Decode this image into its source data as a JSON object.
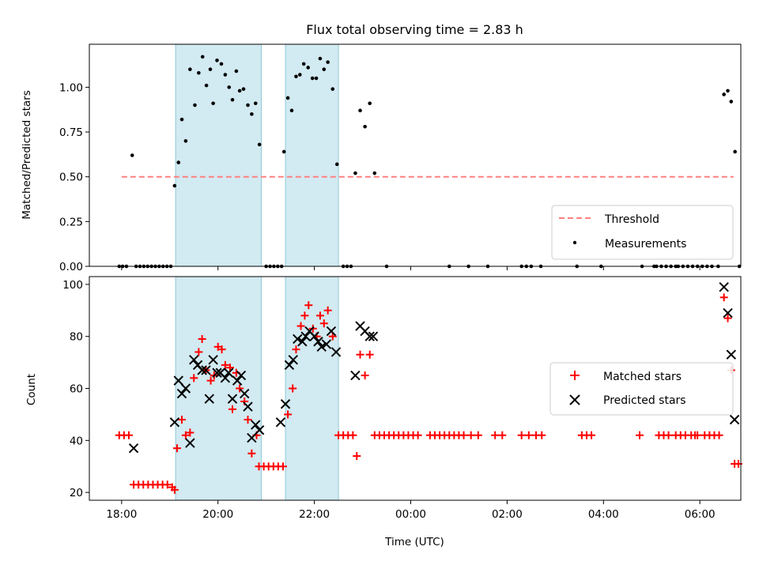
{
  "chart_data": [
    {
      "type": "scatter",
      "title": "Flux total observing time = 2.83 h",
      "xlabel": "",
      "ylabel": "Matched/Predicted stars",
      "xlim_hours": [
        17.33,
        30.85
      ],
      "ylim": [
        0,
        1.24
      ],
      "yticks": [
        "0.00",
        "0.25",
        "0.50",
        "0.75",
        "1.00"
      ],
      "xticks": [
        18,
        20,
        22,
        24,
        26,
        28,
        30
      ],
      "shaded_intervals_hours": [
        [
          19.12,
          20.9
        ],
        [
          21.4,
          22.5
        ]
      ],
      "shade_color": "#add8e6",
      "legend_position": "lower-right",
      "series": [
        {
          "name": "Threshold",
          "kind": "dashed-line",
          "color": "#ff8080",
          "x": [
            18.0,
            30.7
          ],
          "y": [
            0.5,
            0.5
          ]
        },
        {
          "name": "Measurements",
          "kind": "dots",
          "color": "#000000",
          "points": [
            [
              17.95,
              0
            ],
            [
              18.02,
              0
            ],
            [
              18.1,
              0
            ],
            [
              18.22,
              0.62
            ],
            [
              18.3,
              0
            ],
            [
              18.38,
              0
            ],
            [
              18.46,
              0
            ],
            [
              18.54,
              0
            ],
            [
              18.62,
              0
            ],
            [
              18.7,
              0
            ],
            [
              18.78,
              0
            ],
            [
              18.86,
              0
            ],
            [
              18.94,
              0
            ],
            [
              19.02,
              0
            ],
            [
              19.1,
              0.45
            ],
            [
              19.18,
              0.58
            ],
            [
              19.25,
              0.82
            ],
            [
              19.33,
              0.7
            ],
            [
              19.42,
              1.1
            ],
            [
              19.52,
              0.9
            ],
            [
              19.6,
              1.08
            ],
            [
              19.68,
              1.17
            ],
            [
              19.76,
              1.01
            ],
            [
              19.84,
              1.1
            ],
            [
              19.9,
              0.91
            ],
            [
              19.98,
              1.15
            ],
            [
              20.07,
              1.13
            ],
            [
              20.15,
              1.07
            ],
            [
              20.23,
              1.0
            ],
            [
              20.3,
              0.93
            ],
            [
              20.38,
              1.09
            ],
            [
              20.45,
              0.98
            ],
            [
              20.53,
              0.99
            ],
            [
              20.62,
              0.9
            ],
            [
              20.7,
              0.85
            ],
            [
              20.78,
              0.91
            ],
            [
              20.86,
              0.68
            ],
            [
              21.0,
              0
            ],
            [
              21.08,
              0
            ],
            [
              21.16,
              0
            ],
            [
              21.24,
              0
            ],
            [
              21.32,
              0
            ],
            [
              21.37,
              0.64
            ],
            [
              21.45,
              0.94
            ],
            [
              21.53,
              0.87
            ],
            [
              21.62,
              1.06
            ],
            [
              21.7,
              1.07
            ],
            [
              21.78,
              1.13
            ],
            [
              21.87,
              1.11
            ],
            [
              21.96,
              1.05
            ],
            [
              22.04,
              1.05
            ],
            [
              22.12,
              1.16
            ],
            [
              22.2,
              1.1
            ],
            [
              22.28,
              1.14
            ],
            [
              22.38,
              0.99
            ],
            [
              22.47,
              0.57
            ],
            [
              22.6,
              0
            ],
            [
              22.68,
              0
            ],
            [
              22.76,
              0
            ],
            [
              22.85,
              0.52
            ],
            [
              22.95,
              0.87
            ],
            [
              23.05,
              0.78
            ],
            [
              23.15,
              0.91
            ],
            [
              23.25,
              0.52
            ],
            [
              23.5,
              0
            ],
            [
              24.8,
              0
            ],
            [
              25.2,
              0
            ],
            [
              25.6,
              0
            ],
            [
              26.3,
              0
            ],
            [
              26.4,
              0
            ],
            [
              26.5,
              0
            ],
            [
              26.7,
              0
            ],
            [
              27.45,
              0
            ],
            [
              27.95,
              0
            ],
            [
              28.8,
              0
            ],
            [
              29.05,
              0
            ],
            [
              29.1,
              0
            ],
            [
              29.2,
              0
            ],
            [
              29.3,
              0
            ],
            [
              29.4,
              0
            ],
            [
              29.5,
              0
            ],
            [
              29.55,
              0
            ],
            [
              29.65,
              0
            ],
            [
              29.75,
              0
            ],
            [
              29.85,
              0
            ],
            [
              29.95,
              0
            ],
            [
              30.05,
              0
            ],
            [
              30.15,
              0
            ],
            [
              30.25,
              0
            ],
            [
              30.38,
              0
            ],
            [
              30.5,
              0.96
            ],
            [
              30.58,
              0.98
            ],
            [
              30.65,
              0.92
            ],
            [
              30.73,
              0.64
            ],
            [
              30.82,
              0
            ]
          ]
        }
      ]
    },
    {
      "type": "scatter",
      "title": "",
      "xlabel": "Time (UTC)",
      "ylabel": "Count",
      "xlim_hours": [
        17.33,
        30.85
      ],
      "ylim": [
        17,
        103
      ],
      "yticks": [
        "20",
        "40",
        "60",
        "80",
        "100"
      ],
      "xticks": [
        18,
        20,
        22,
        24,
        26,
        28,
        30
      ],
      "xtick_labels": [
        "18:00",
        "20:00",
        "22:00",
        "00:00",
        "02:00",
        "04:00",
        "06:00"
      ],
      "shaded_intervals_hours": [
        [
          19.12,
          20.9
        ],
        [
          21.4,
          22.5
        ]
      ],
      "shade_color": "#add8e6",
      "legend_position": "center-right",
      "series": [
        {
          "name": "Matched stars",
          "kind": "plus",
          "color": "#ff0000",
          "points": [
            [
              17.95,
              42
            ],
            [
              18.05,
              42
            ],
            [
              18.15,
              42
            ],
            [
              18.25,
              23
            ],
            [
              18.35,
              23
            ],
            [
              18.45,
              23
            ],
            [
              18.55,
              23
            ],
            [
              18.65,
              23
            ],
            [
              18.75,
              23
            ],
            [
              18.85,
              23
            ],
            [
              18.95,
              23
            ],
            [
              19.05,
              22
            ],
            [
              19.1,
              21
            ],
            [
              19.15,
              37
            ],
            [
              19.25,
              48
            ],
            [
              19.33,
              42
            ],
            [
              19.42,
              43
            ],
            [
              19.5,
              64
            ],
            [
              19.6,
              74
            ],
            [
              19.67,
              79
            ],
            [
              19.75,
              67
            ],
            [
              19.85,
              63
            ],
            [
              19.92,
              65
            ],
            [
              20.0,
              76
            ],
            [
              20.08,
              75
            ],
            [
              20.15,
              69
            ],
            [
              20.25,
              68
            ],
            [
              20.3,
              52
            ],
            [
              20.38,
              66
            ],
            [
              20.45,
              60
            ],
            [
              20.55,
              55
            ],
            [
              20.62,
              48
            ],
            [
              20.7,
              35
            ],
            [
              20.8,
              42
            ],
            [
              20.85,
              30
            ],
            [
              20.95,
              30
            ],
            [
              21.05,
              30
            ],
            [
              21.15,
              30
            ],
            [
              21.25,
              30
            ],
            [
              21.35,
              30
            ],
            [
              21.45,
              50
            ],
            [
              21.55,
              60
            ],
            [
              21.62,
              75
            ],
            [
              21.72,
              84
            ],
            [
              21.8,
              88
            ],
            [
              21.88,
              92
            ],
            [
              21.97,
              83
            ],
            [
              22.05,
              80
            ],
            [
              22.12,
              88
            ],
            [
              22.2,
              85
            ],
            [
              22.28,
              90
            ],
            [
              22.38,
              80
            ],
            [
              22.5,
              42
            ],
            [
              22.6,
              42
            ],
            [
              22.7,
              42
            ],
            [
              22.8,
              42
            ],
            [
              22.88,
              34
            ],
            [
              22.95,
              73
            ],
            [
              23.05,
              65
            ],
            [
              23.15,
              73
            ],
            [
              23.25,
              42
            ],
            [
              23.35,
              42
            ],
            [
              23.45,
              42
            ],
            [
              23.55,
              42
            ],
            [
              23.65,
              42
            ],
            [
              23.75,
              42
            ],
            [
              23.85,
              42
            ],
            [
              23.95,
              42
            ],
            [
              24.05,
              42
            ],
            [
              24.15,
              42
            ],
            [
              24.4,
              42
            ],
            [
              24.5,
              42
            ],
            [
              24.6,
              42
            ],
            [
              24.7,
              42
            ],
            [
              24.8,
              42
            ],
            [
              24.9,
              42
            ],
            [
              25.0,
              42
            ],
            [
              25.1,
              42
            ],
            [
              25.25,
              42
            ],
            [
              25.4,
              42
            ],
            [
              25.75,
              42
            ],
            [
              25.9,
              42
            ],
            [
              26.3,
              42
            ],
            [
              26.45,
              42
            ],
            [
              26.6,
              42
            ],
            [
              26.72,
              42
            ],
            [
              27.55,
              42
            ],
            [
              27.65,
              42
            ],
            [
              27.75,
              42
            ],
            [
              28.75,
              42
            ],
            [
              29.15,
              42
            ],
            [
              29.25,
              42
            ],
            [
              29.35,
              42
            ],
            [
              29.5,
              42
            ],
            [
              29.6,
              42
            ],
            [
              29.7,
              42
            ],
            [
              29.82,
              42
            ],
            [
              29.9,
              42
            ],
            [
              29.95,
              42
            ],
            [
              30.1,
              42
            ],
            [
              30.2,
              42
            ],
            [
              30.3,
              42
            ],
            [
              30.4,
              42
            ],
            [
              30.5,
              95
            ],
            [
              30.58,
              87
            ],
            [
              30.65,
              67
            ],
            [
              30.72,
              31
            ],
            [
              30.8,
              31
            ]
          ]
        },
        {
          "name": "Predicted stars",
          "kind": "x",
          "color": "#000000",
          "points": [
            [
              18.25,
              37
            ],
            [
              19.1,
              47
            ],
            [
              19.18,
              63
            ],
            [
              19.25,
              58
            ],
            [
              19.33,
              60
            ],
            [
              19.42,
              39
            ],
            [
              19.5,
              71
            ],
            [
              19.58,
              69
            ],
            [
              19.67,
              67
            ],
            [
              19.75,
              67
            ],
            [
              19.82,
              56
            ],
            [
              19.9,
              71
            ],
            [
              19.98,
              66
            ],
            [
              20.05,
              66
            ],
            [
              20.15,
              64
            ],
            [
              20.22,
              66
            ],
            [
              20.3,
              56
            ],
            [
              20.4,
              63
            ],
            [
              20.48,
              65
            ],
            [
              20.55,
              58
            ],
            [
              20.62,
              53
            ],
            [
              20.7,
              41
            ],
            [
              20.78,
              46
            ],
            [
              20.86,
              44
            ],
            [
              21.3,
              47
            ],
            [
              21.4,
              54
            ],
            [
              21.48,
              69
            ],
            [
              21.56,
              71
            ],
            [
              21.65,
              79
            ],
            [
              21.75,
              78
            ],
            [
              21.82,
              80
            ],
            [
              21.9,
              82
            ],
            [
              22.0,
              80
            ],
            [
              22.08,
              78
            ],
            [
              22.15,
              76
            ],
            [
              22.25,
              77
            ],
            [
              22.35,
              82
            ],
            [
              22.45,
              74
            ],
            [
              22.85,
              65
            ],
            [
              22.95,
              84
            ],
            [
              23.05,
              82
            ],
            [
              23.15,
              80
            ],
            [
              23.22,
              80
            ],
            [
              30.5,
              99
            ],
            [
              30.58,
              89
            ],
            [
              30.65,
              73
            ],
            [
              30.72,
              48
            ]
          ]
        }
      ]
    }
  ]
}
